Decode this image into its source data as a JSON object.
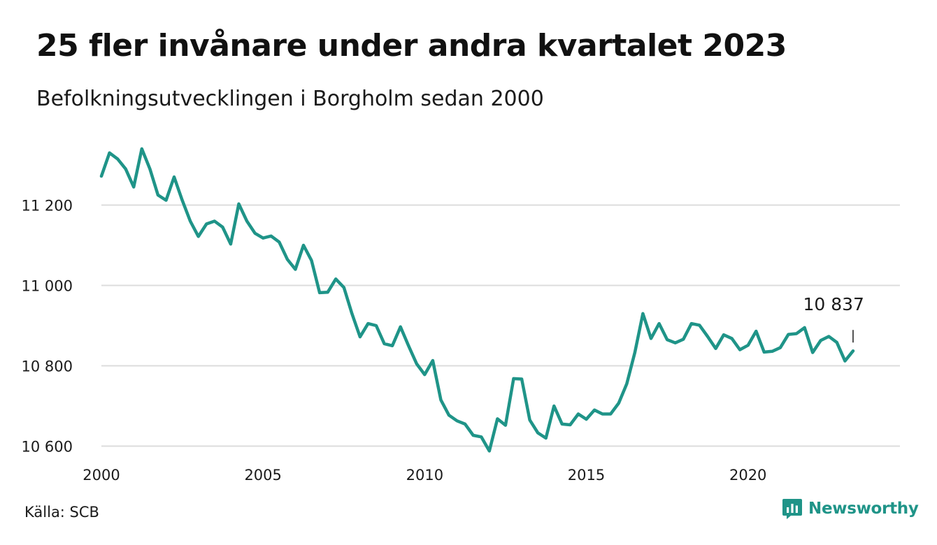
{
  "title": "25 fler invånare under andra kvartalet 2023",
  "subtitle": "Befolkningsutvecklingen i Borgholm sedan 2000",
  "source": "Källa: SCB",
  "brand": {
    "name": "Newsworthy",
    "icon": "newsworthy-logo-icon"
  },
  "colors": {
    "line": "#1f9488",
    "grid": "#dcdcdc",
    "brand": "#1f9488"
  },
  "chart_data": {
    "type": "line",
    "title": "25 fler invånare under andra kvartalet 2023",
    "subtitle": "Befolkningsutvecklingen i Borgholm sedan 2000",
    "xlabel": "",
    "ylabel": "",
    "xlim": [
      2000,
      2024.7
    ],
    "ylim": [
      10580,
      11380
    ],
    "x_ticks": [
      2000,
      2005,
      2010,
      2015,
      2020
    ],
    "y_ticks": [
      10600,
      10800,
      11000,
      11200
    ],
    "y_tick_labels": [
      "10 600",
      "10 800",
      "11 000",
      "11 200"
    ],
    "grid": true,
    "annotation": {
      "text": "10 837",
      "x": 2023.25,
      "y": 10837
    },
    "series": [
      {
        "values": [
          {
            "x": 2000.0,
            "y": 11272
          },
          {
            "x": 2000.25,
            "y": 11330
          },
          {
            "x": 2000.5,
            "y": 11315
          },
          {
            "x": 2000.75,
            "y": 11290
          },
          {
            "x": 2001.0,
            "y": 11245
          },
          {
            "x": 2001.25,
            "y": 11340
          },
          {
            "x": 2001.5,
            "y": 11290
          },
          {
            "x": 2001.75,
            "y": 11225
          },
          {
            "x": 2002.0,
            "y": 11212
          },
          {
            "x": 2002.25,
            "y": 11270
          },
          {
            "x": 2002.5,
            "y": 11212
          },
          {
            "x": 2002.75,
            "y": 11160
          },
          {
            "x": 2003.0,
            "y": 11122
          },
          {
            "x": 2003.25,
            "y": 11153
          },
          {
            "x": 2003.5,
            "y": 11160
          },
          {
            "x": 2003.75,
            "y": 11145
          },
          {
            "x": 2004.0,
            "y": 11103
          },
          {
            "x": 2004.25,
            "y": 11203
          },
          {
            "x": 2004.5,
            "y": 11160
          },
          {
            "x": 2004.75,
            "y": 11130
          },
          {
            "x": 2005.0,
            "y": 11118
          },
          {
            "x": 2005.25,
            "y": 11123
          },
          {
            "x": 2005.5,
            "y": 11108
          },
          {
            "x": 2005.75,
            "y": 11065
          },
          {
            "x": 2006.0,
            "y": 11040
          },
          {
            "x": 2006.25,
            "y": 11100
          },
          {
            "x": 2006.5,
            "y": 11062
          },
          {
            "x": 2006.75,
            "y": 10982
          },
          {
            "x": 2007.0,
            "y": 10983
          },
          {
            "x": 2007.25,
            "y": 11016
          },
          {
            "x": 2007.5,
            "y": 10995
          },
          {
            "x": 2007.75,
            "y": 10930
          },
          {
            "x": 2008.0,
            "y": 10872
          },
          {
            "x": 2008.25,
            "y": 10905
          },
          {
            "x": 2008.5,
            "y": 10900
          },
          {
            "x": 2008.75,
            "y": 10855
          },
          {
            "x": 2009.0,
            "y": 10850
          },
          {
            "x": 2009.25,
            "y": 10897
          },
          {
            "x": 2009.5,
            "y": 10850
          },
          {
            "x": 2009.75,
            "y": 10805
          },
          {
            "x": 2010.0,
            "y": 10778
          },
          {
            "x": 2010.25,
            "y": 10813
          },
          {
            "x": 2010.5,
            "y": 10715
          },
          {
            "x": 2010.75,
            "y": 10677
          },
          {
            "x": 2011.0,
            "y": 10663
          },
          {
            "x": 2011.25,
            "y": 10655
          },
          {
            "x": 2011.5,
            "y": 10627
          },
          {
            "x": 2011.75,
            "y": 10623
          },
          {
            "x": 2012.0,
            "y": 10588
          },
          {
            "x": 2012.25,
            "y": 10668
          },
          {
            "x": 2012.5,
            "y": 10652
          },
          {
            "x": 2012.75,
            "y": 10768
          },
          {
            "x": 2013.0,
            "y": 10767
          },
          {
            "x": 2013.25,
            "y": 10665
          },
          {
            "x": 2013.5,
            "y": 10633
          },
          {
            "x": 2013.75,
            "y": 10620
          },
          {
            "x": 2014.0,
            "y": 10700
          },
          {
            "x": 2014.25,
            "y": 10655
          },
          {
            "x": 2014.5,
            "y": 10653
          },
          {
            "x": 2014.75,
            "y": 10680
          },
          {
            "x": 2015.0,
            "y": 10667
          },
          {
            "x": 2015.25,
            "y": 10690
          },
          {
            "x": 2015.5,
            "y": 10680
          },
          {
            "x": 2015.75,
            "y": 10680
          },
          {
            "x": 2016.0,
            "y": 10707
          },
          {
            "x": 2016.25,
            "y": 10755
          },
          {
            "x": 2016.5,
            "y": 10833
          },
          {
            "x": 2016.75,
            "y": 10930
          },
          {
            "x": 2017.0,
            "y": 10868
          },
          {
            "x": 2017.25,
            "y": 10905
          },
          {
            "x": 2017.5,
            "y": 10865
          },
          {
            "x": 2017.75,
            "y": 10857
          },
          {
            "x": 2018.0,
            "y": 10866
          },
          {
            "x": 2018.25,
            "y": 10905
          },
          {
            "x": 2018.5,
            "y": 10901
          },
          {
            "x": 2018.75,
            "y": 10873
          },
          {
            "x": 2019.0,
            "y": 10843
          },
          {
            "x": 2019.25,
            "y": 10877
          },
          {
            "x": 2019.5,
            "y": 10868
          },
          {
            "x": 2019.75,
            "y": 10840
          },
          {
            "x": 2020.0,
            "y": 10851
          },
          {
            "x": 2020.25,
            "y": 10886
          },
          {
            "x": 2020.5,
            "y": 10834
          },
          {
            "x": 2020.75,
            "y": 10836
          },
          {
            "x": 2021.0,
            "y": 10845
          },
          {
            "x": 2021.25,
            "y": 10878
          },
          {
            "x": 2021.5,
            "y": 10880
          },
          {
            "x": 2021.75,
            "y": 10895
          },
          {
            "x": 2022.0,
            "y": 10833
          },
          {
            "x": 2022.25,
            "y": 10863
          },
          {
            "x": 2022.5,
            "y": 10873
          },
          {
            "x": 2022.75,
            "y": 10858
          },
          {
            "x": 2023.0,
            "y": 10812
          },
          {
            "x": 2023.25,
            "y": 10837
          }
        ]
      }
    ]
  }
}
